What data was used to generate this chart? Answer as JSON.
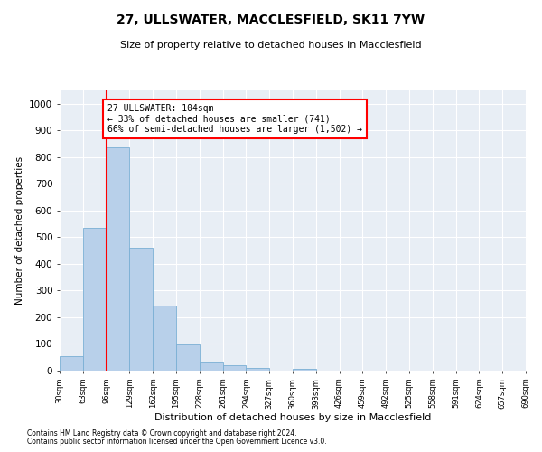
{
  "title": "27, ULLSWATER, MACCLESFIELD, SK11 7YW",
  "subtitle": "Size of property relative to detached houses in Macclesfield",
  "xlabel": "Distribution of detached houses by size in Macclesfield",
  "ylabel": "Number of detached properties",
  "footnote1": "Contains HM Land Registry data © Crown copyright and database right 2024.",
  "footnote2": "Contains public sector information licensed under the Open Government Licence v3.0.",
  "bin_edges": [
    30,
    63,
    96,
    129,
    162,
    195,
    228,
    261,
    294,
    327,
    360,
    393,
    426,
    459,
    492,
    525,
    558,
    591,
    624,
    657,
    690
  ],
  "bar_values": [
    55,
    535,
    835,
    460,
    245,
    98,
    35,
    22,
    10,
    0,
    8,
    0,
    0,
    0,
    0,
    0,
    0,
    0,
    0,
    0
  ],
  "bar_color": "#b8d0ea",
  "bar_edge_color": "#7aafd4",
  "property_bin_edge": 96,
  "annotation_text": "27 ULLSWATER: 104sqm\n← 33% of detached houses are smaller (741)\n66% of semi-detached houses are larger (1,502) →",
  "annotation_box_color": "white",
  "annotation_box_edge": "red",
  "vline_color": "red",
  "ylim": [
    0,
    1050
  ],
  "yticks": [
    0,
    100,
    200,
    300,
    400,
    500,
    600,
    700,
    800,
    900,
    1000
  ],
  "bg_color": "#e8eef5",
  "grid_color": "white",
  "tick_labels": [
    "30sqm",
    "63sqm",
    "96sqm",
    "129sqm",
    "162sqm",
    "195sqm",
    "228sqm",
    "261sqm",
    "294sqm",
    "327sqm",
    "360sqm",
    "393sqm",
    "426sqm",
    "459sqm",
    "492sqm",
    "525sqm",
    "558sqm",
    "591sqm",
    "624sqm",
    "657sqm",
    "690sqm"
  ]
}
